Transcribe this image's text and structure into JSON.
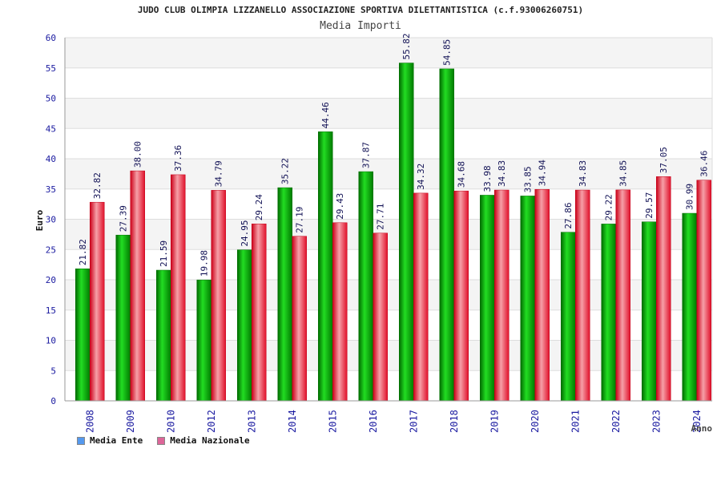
{
  "chart_data": {
    "type": "bar",
    "title": "JUDO CLUB OLIMPIA LIZZANELLO ASSOCIAZIONE SPORTIVA DILETTANTISTICA (c.f.93006260751)",
    "subtitle": "Media Importi",
    "xlabel": "Anno",
    "ylabel": "Euro",
    "ylim": [
      0,
      60
    ],
    "yticks": [
      0,
      5,
      10,
      15,
      20,
      25,
      30,
      35,
      40,
      45,
      50,
      55,
      60
    ],
    "categories": [
      "2008",
      "2009",
      "2010",
      "2012",
      "2013",
      "2014",
      "2015",
      "2016",
      "2017",
      "2018",
      "2019",
      "2020",
      "2021",
      "2022",
      "2023",
      "2024"
    ],
    "series": [
      {
        "name": "Media Ente",
        "color": "#00b000",
        "legend_color": "#5599ee",
        "values": [
          21.82,
          27.39,
          21.59,
          19.98,
          24.95,
          35.22,
          44.46,
          37.87,
          55.82,
          54.85,
          33.98,
          33.85,
          27.86,
          29.22,
          29.57,
          30.99
        ],
        "labels": [
          "21.82",
          "27.39",
          "21.59",
          "19.98",
          "24.95",
          "35.22",
          "44.46",
          "37.87",
          "55.82",
          "54.85",
          "33.98",
          "33.85",
          "27.86",
          "29.22",
          "29.57",
          "30.99"
        ]
      },
      {
        "name": "Media Nazionale",
        "color": "#e8102a",
        "legend_color": "#dd6699",
        "values": [
          32.82,
          38.0,
          37.36,
          34.79,
          29.24,
          27.19,
          29.43,
          27.71,
          34.32,
          34.68,
          34.83,
          34.94,
          34.83,
          34.85,
          37.05,
          36.46
        ],
        "labels": [
          "32.82",
          "38.00",
          "37.36",
          "34.79",
          "29.24",
          "27.19",
          "29.43",
          "27.71",
          "34.32",
          "34.68",
          "34.83",
          "34.94",
          "34.83",
          "34.85",
          "37.05",
          "36.46"
        ]
      }
    ],
    "grid": true,
    "legend_position": "bottom-left"
  }
}
